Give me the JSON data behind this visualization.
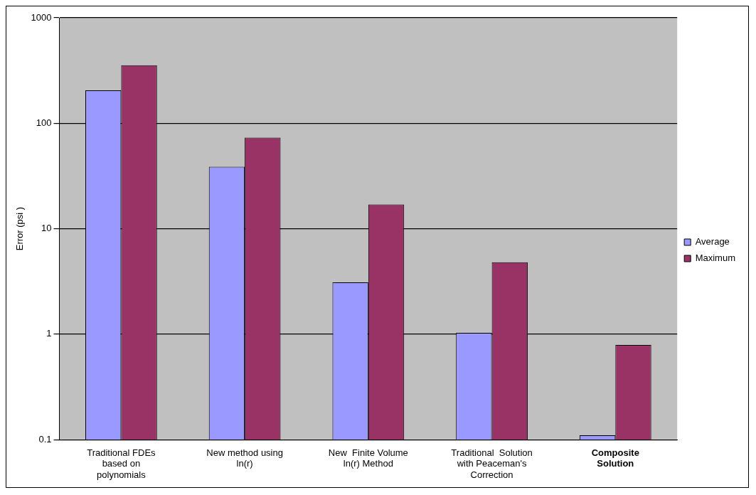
{
  "chart_data": {
    "type": "bar",
    "ylabel": "Error (psi )",
    "categories": [
      "Traditional FDEs\nbased on\npolynomials",
      "New method using\nln(r)",
      "New  Finite Volume\nln(r) Method",
      "Traditional  Solution\nwith Peaceman's\nCorrection",
      "Composite\nSolution"
    ],
    "series": [
      {
        "name": "Average",
        "color": "#9999ff",
        "values": [
          205,
          38.7,
          3.1,
          1.03,
          0.11
        ]
      },
      {
        "name": "Maximum",
        "color": "#993366",
        "values": [
          355,
          73,
          17,
          4.8,
          0.79
        ]
      }
    ],
    "log": "y",
    "ylim": [
      0.1,
      1000
    ],
    "yticks": [
      0.1,
      1,
      10,
      100,
      1000
    ],
    "grid": "y",
    "legend": "right"
  }
}
